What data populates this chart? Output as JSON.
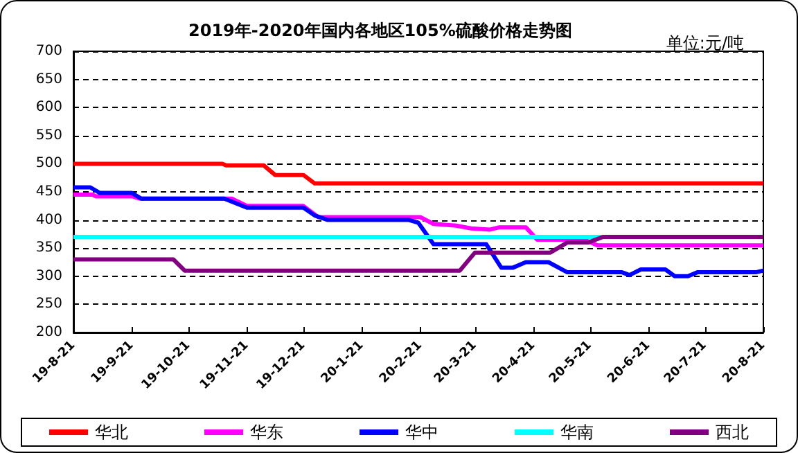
{
  "chart_data": {
    "type": "line",
    "title": "2019年-2020年国内各地区105%硫酸价格走势图",
    "annotations": [
      "单位:元/吨"
    ],
    "xlim": [
      "2019-08-21",
      "2020-08-21"
    ],
    "xticks": [
      {
        "value": "2019-08-21",
        "label": "19-8-21"
      },
      {
        "value": "2019-09-21",
        "label": "19-9-21"
      },
      {
        "value": "2019-10-21",
        "label": "19-10-21"
      },
      {
        "value": "2019-11-21",
        "label": "19-11-21"
      },
      {
        "value": "2019-12-21",
        "label": "19-12-21"
      },
      {
        "value": "2020-01-21",
        "label": "20-1-21"
      },
      {
        "value": "2020-02-21",
        "label": "20-2-21"
      },
      {
        "value": "2020-03-21",
        "label": "20-3-21"
      },
      {
        "value": "2020-04-21",
        "label": "20-4-21"
      },
      {
        "value": "2020-05-21",
        "label": "20-5-21"
      },
      {
        "value": "2020-06-21",
        "label": "20-6-21"
      },
      {
        "value": "2020-07-21",
        "label": "20-7-21"
      },
      {
        "value": "2020-08-21",
        "label": "20-8-21"
      }
    ],
    "ylim": [
      200,
      700
    ],
    "yticks": [
      200,
      250,
      300,
      350,
      400,
      450,
      500,
      550,
      600,
      650,
      700
    ],
    "grid": "y",
    "legend": "bottom",
    "marker": "none",
    "line_style": "solid",
    "series": [
      {
        "name": "华北",
        "color": "#ff0000",
        "x": [
          "2019-08-21",
          "2019-11-08",
          "2019-11-10",
          "2019-11-30",
          "2019-12-06",
          "2019-12-21",
          "2019-12-27",
          "2020-08-21"
        ],
        "values": [
          500,
          500,
          497,
          497,
          480,
          480,
          465,
          465
        ]
      },
      {
        "name": "华东",
        "color": "#ff00ff",
        "x": [
          "2019-08-21",
          "2019-08-31",
          "2019-09-02",
          "2019-09-21",
          "2019-09-25",
          "2019-11-13",
          "2019-11-21",
          "2019-12-21",
          "2019-12-29",
          "2020-02-21",
          "2020-02-28",
          "2020-03-11",
          "2020-03-19",
          "2020-03-29",
          "2020-04-03",
          "2020-04-17",
          "2020-04-23",
          "2020-05-18",
          "2020-05-25",
          "2020-08-21"
        ],
        "values": [
          445,
          445,
          442,
          442,
          438,
          438,
          425,
          425,
          405,
          405,
          393,
          390,
          385,
          383,
          387,
          387,
          365,
          365,
          355,
          355
        ]
      },
      {
        "name": "华中",
        "color": "#0000ff",
        "x": [
          "2019-08-21",
          "2019-08-30",
          "2019-09-04",
          "2019-09-21",
          "2019-09-26",
          "2019-11-09",
          "2019-11-21",
          "2019-12-21",
          "2019-12-27",
          "2020-01-03",
          "2020-02-15",
          "2020-02-20",
          "2020-02-28",
          "2020-03-27",
          "2020-04-04",
          "2020-04-10",
          "2020-04-17",
          "2020-04-29",
          "2020-05-09",
          "2020-06-07",
          "2020-06-11",
          "2020-06-17",
          "2020-06-30",
          "2020-07-05",
          "2020-07-12",
          "2020-07-17",
          "2020-08-17",
          "2020-08-21"
        ],
        "values": [
          458,
          458,
          448,
          448,
          438,
          438,
          422,
          422,
          408,
          400,
          400,
          395,
          357,
          357,
          315,
          315,
          325,
          325,
          307,
          307,
          302,
          312,
          312,
          300,
          300,
          307,
          307,
          310
        ]
      },
      {
        "name": "华南",
        "color": "#00ffff",
        "x": [
          "2019-08-21",
          "2020-05-28"
        ],
        "values": [
          370,
          370
        ]
      },
      {
        "name": "西北",
        "color": "#800080",
        "x": [
          "2019-08-21",
          "2019-10-13",
          "2019-10-19",
          "2020-03-13",
          "2020-03-21",
          "2020-04-30",
          "2020-05-09",
          "2020-05-20",
          "2020-05-28",
          "2020-08-21"
        ],
        "values": [
          330,
          330,
          310,
          310,
          342,
          342,
          360,
          360,
          370,
          370
        ]
      }
    ]
  }
}
